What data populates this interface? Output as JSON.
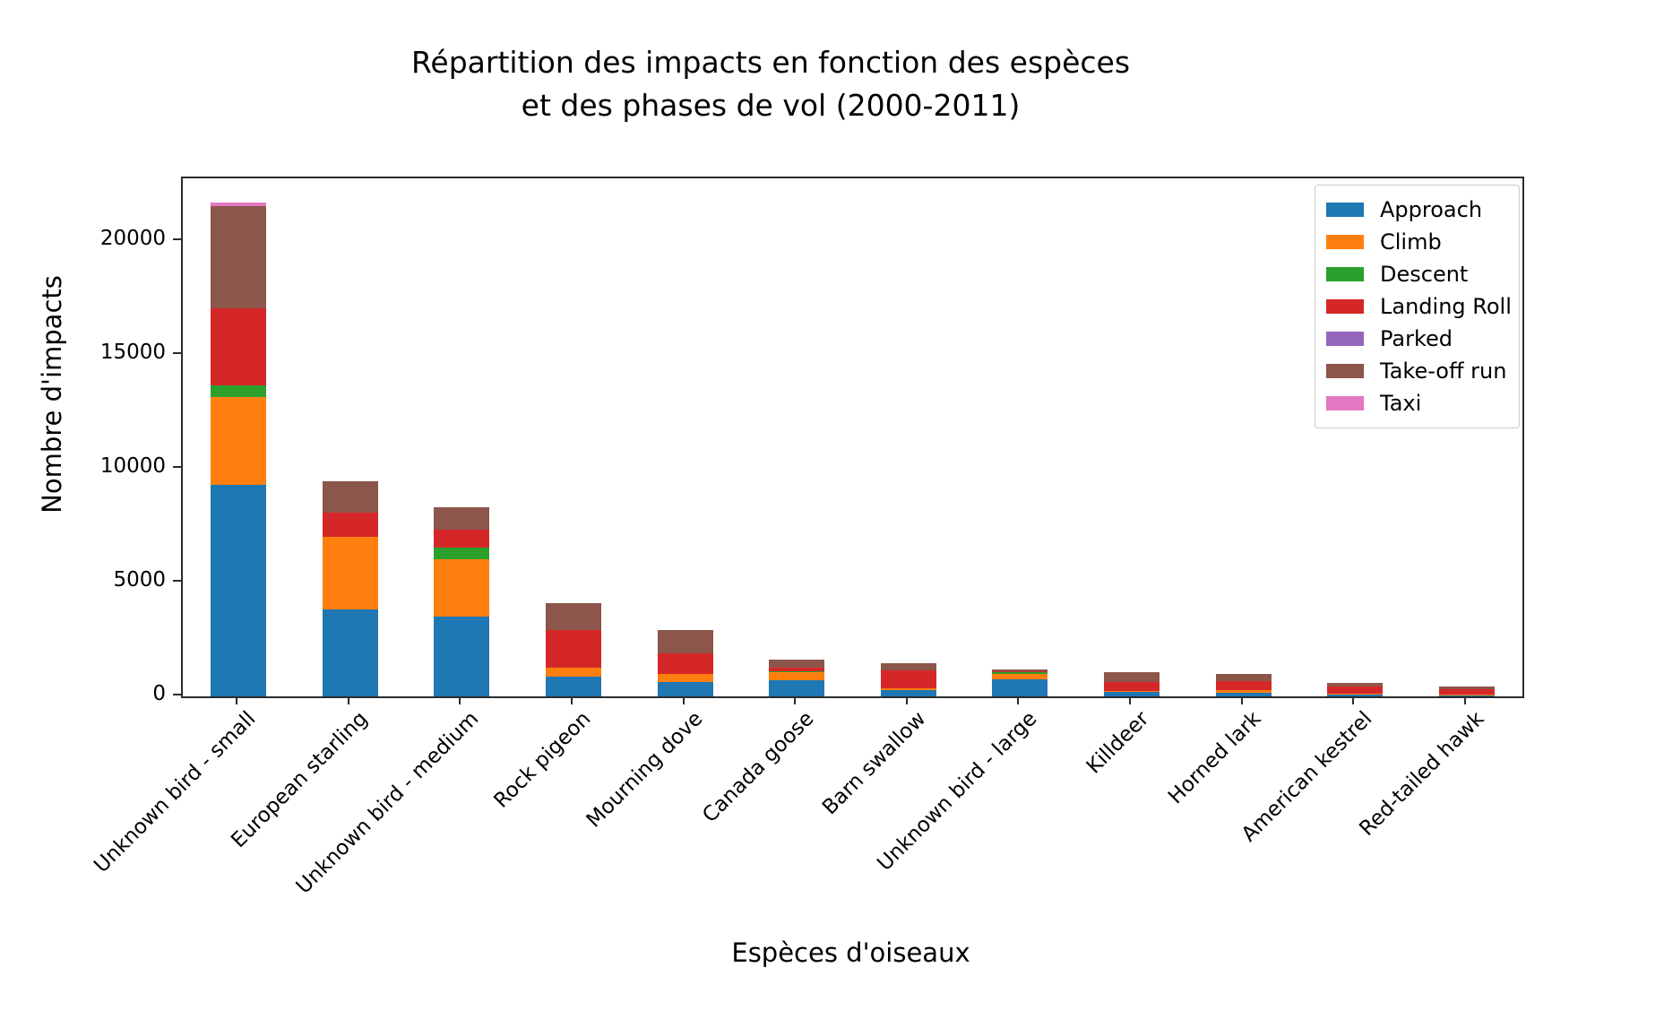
{
  "chart_data": {
    "type": "bar",
    "stacked": true,
    "title": "Répartition des impacts en fonction des espèces\net des phases de vol (2000-2011)",
    "xlabel": "Espèces d'oiseaux",
    "ylabel": "Nombre d'impacts",
    "ylim": [
      0,
      22750
    ],
    "yticks": [
      0,
      5000,
      10000,
      15000,
      20000
    ],
    "grid": false,
    "legend_position": "upper right",
    "categories": [
      "Unknown bird - small",
      "European starling",
      "Unknown bird - medium",
      "Rock pigeon",
      "Mourning dove",
      "Canada goose",
      "Barn swallow",
      "Unknown bird - large",
      "Killdeer",
      "Horned lark",
      "American kestrel",
      "Red-tailed hawk"
    ],
    "series": [
      {
        "name": "Approach",
        "color": "#1f77b4",
        "values": [
          9300,
          3810,
          3490,
          850,
          630,
          710,
          260,
          760,
          180,
          170,
          60,
          40
        ]
      },
      {
        "name": "Climb",
        "color": "#ff7f0e",
        "values": [
          3850,
          3210,
          2550,
          400,
          350,
          340,
          90,
          230,
          60,
          90,
          50,
          30
        ]
      },
      {
        "name": "Descent",
        "color": "#2ca02c",
        "values": [
          500,
          0,
          480,
          0,
          0,
          65,
          0,
          90,
          0,
          0,
          0,
          0
        ]
      },
      {
        "name": "Landing Roll",
        "color": "#d62728",
        "values": [
          3380,
          1060,
          790,
          1680,
          900,
          160,
          790,
          40,
          390,
          420,
          330,
          250
        ]
      },
      {
        "name": "Parked",
        "color": "#9467bd",
        "values": [
          0,
          0,
          0,
          0,
          0,
          0,
          0,
          0,
          0,
          0,
          0,
          0
        ]
      },
      {
        "name": "Take-off run",
        "color": "#8c564b",
        "values": [
          4490,
          1350,
          1010,
          1160,
          1020,
          330,
          320,
          45,
          430,
          300,
          170,
          130
        ]
      },
      {
        "name": "Taxi",
        "color": "#e377c2",
        "values": [
          170,
          0,
          0,
          0,
          0,
          0,
          0,
          0,
          0,
          0,
          0,
          0
        ]
      }
    ],
    "axis_color": "#2b2b2b",
    "background_color": "#ffffff"
  }
}
